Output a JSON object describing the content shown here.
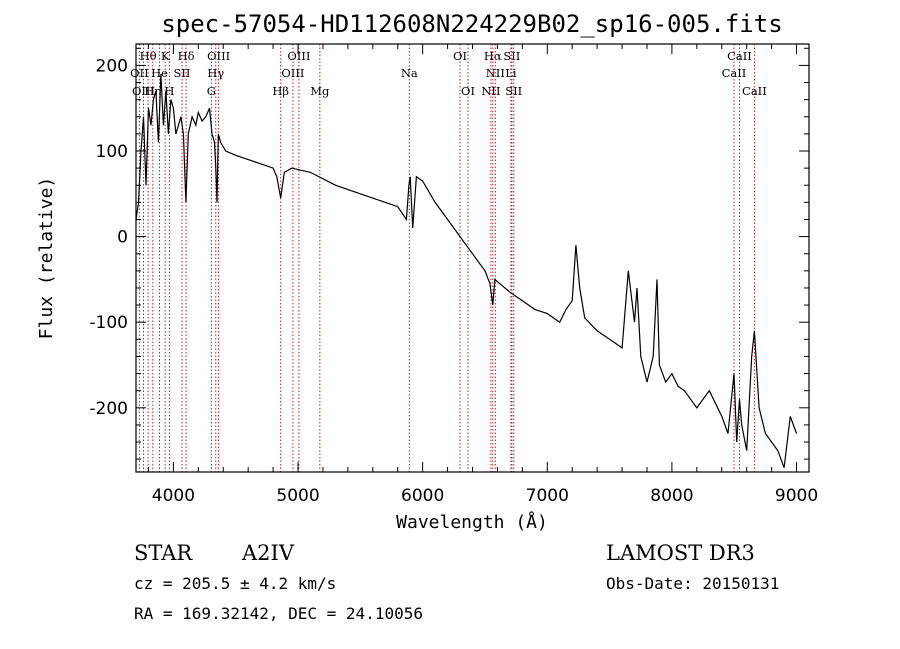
{
  "chart_data": {
    "type": "line",
    "title": "spec-57054-HD112608N224229B02_sp16-005.fits",
    "xlabel": "Wavelength (Å)",
    "ylabel": "Flux (relative)",
    "xlim": [
      3700,
      9100
    ],
    "ylim": [
      -275,
      225
    ],
    "xticks": [
      4000,
      5000,
      6000,
      7000,
      8000,
      9000
    ],
    "yticks": [
      200,
      100,
      0,
      -100,
      -200
    ],
    "series": [
      {
        "name": "flux",
        "x": [
          3700,
          3720,
          3740,
          3760,
          3780,
          3800,
          3820,
          3840,
          3860,
          3880,
          3900,
          3920,
          3940,
          3960,
          3980,
          4000,
          4020,
          4040,
          4060,
          4080,
          4100,
          4120,
          4150,
          4180,
          4200,
          4230,
          4260,
          4290,
          4310,
          4330,
          4340,
          4350,
          4360,
          4380,
          4420,
          4500,
          4600,
          4700,
          4800,
          4830,
          4861,
          4890,
          4950,
          5100,
          5300,
          5500,
          5700,
          5800,
          5870,
          5890,
          5900,
          5920,
          5950,
          6000,
          6100,
          6200,
          6300,
          6400,
          6450,
          6500,
          6540,
          6563,
          6580,
          6620,
          6700,
          6800,
          6900,
          7000,
          7100,
          7150,
          7200,
          7230,
          7260,
          7300,
          7400,
          7500,
          7600,
          7650,
          7700,
          7720,
          7750,
          7800,
          7850,
          7880,
          7900,
          7950,
          8000,
          8050,
          8100,
          8150,
          8200,
          8300,
          8400,
          8450,
          8498,
          8520,
          8542,
          8560,
          8600,
          8640,
          8662,
          8700,
          8750,
          8800,
          8850,
          8900,
          8950,
          9000
        ],
        "values": [
          20,
          40,
          100,
          140,
          60,
          150,
          130,
          160,
          170,
          110,
          190,
          130,
          170,
          120,
          160,
          150,
          120,
          130,
          140,
          120,
          40,
          120,
          140,
          130,
          145,
          135,
          140,
          150,
          120,
          110,
          80,
          40,
          120,
          110,
          100,
          95,
          90,
          85,
          80,
          70,
          45,
          75,
          80,
          75,
          60,
          50,
          40,
          35,
          20,
          60,
          70,
          10,
          70,
          65,
          40,
          20,
          0,
          -20,
          -30,
          -40,
          -55,
          -80,
          -50,
          -55,
          -65,
          -75,
          -85,
          -90,
          -100,
          -85,
          -75,
          -10,
          -60,
          -95,
          -110,
          -120,
          -130,
          -40,
          -100,
          -60,
          -140,
          -170,
          -140,
          -50,
          -150,
          -170,
          -160,
          -175,
          -180,
          -190,
          -200,
          -180,
          -210,
          -230,
          -160,
          -240,
          -190,
          -220,
          -250,
          -140,
          -110,
          -200,
          -230,
          -240,
          -250,
          -270,
          -210,
          -230
        ]
      }
    ],
    "line_labels": [
      {
        "label": "Hθ",
        "wavelength": 3797,
        "row": 1
      },
      {
        "label": "OII",
        "wavelength": 3727,
        "row": 2
      },
      {
        "label": "OIII",
        "wavelength": 3760,
        "row": 3
      },
      {
        "label": "Hη",
        "wavelength": 3835,
        "row": 3
      },
      {
        "label": "He",
        "wavelength": 3889,
        "row": 2
      },
      {
        "label": "H",
        "wavelength": 3968,
        "row": 3
      },
      {
        "label": "K",
        "wavelength": 3934,
        "row": 1
      },
      {
        "label": "SII",
        "wavelength": 4069,
        "row": 2
      },
      {
        "label": "Hδ",
        "wavelength": 4102,
        "row": 1
      },
      {
        "label": "OIII",
        "wavelength": 4363,
        "row": 1
      },
      {
        "label": "Hγ",
        "wavelength": 4340,
        "row": 2
      },
      {
        "label": "G",
        "wavelength": 4305,
        "row": 3
      },
      {
        "label": "Hβ",
        "wavelength": 4861,
        "row": 3
      },
      {
        "label": "OIII",
        "wavelength": 5007,
        "row": 1
      },
      {
        "label": "OIII",
        "wavelength": 4959,
        "row": 2
      },
      {
        "label": "Mg",
        "wavelength": 5175,
        "row": 3
      },
      {
        "label": "Na",
        "wavelength": 5893,
        "row": 2
      },
      {
        "label": "OI",
        "wavelength": 6300,
        "row": 1
      },
      {
        "label": "OI",
        "wavelength": 6364,
        "row": 3
      },
      {
        "label": "Hα",
        "wavelength": 6563,
        "row": 1
      },
      {
        "label": "SII",
        "wavelength": 6716,
        "row": 1
      },
      {
        "label": "NII",
        "wavelength": 6583,
        "row": 2
      },
      {
        "label": "Li",
        "wavelength": 6708,
        "row": 2
      },
      {
        "label": "NII",
        "wavelength": 6548,
        "row": 3
      },
      {
        "label": "SII",
        "wavelength": 6731,
        "row": 3
      },
      {
        "label": "CaII",
        "wavelength": 8542,
        "row": 1
      },
      {
        "label": "CaII",
        "wavelength": 8498,
        "row": 2
      },
      {
        "label": "CaII",
        "wavelength": 8662,
        "row": 3
      }
    ],
    "line_color": "#b22222"
  },
  "info": {
    "object_class": "STAR",
    "subclass": "A2IV",
    "survey": "LAMOST DR3",
    "cz": "cz = 205.5 ± 4.2 km/s",
    "obs_date": "Obs-Date: 20150131",
    "coords": "RA = 169.32142, DEC =  24.10056"
  }
}
